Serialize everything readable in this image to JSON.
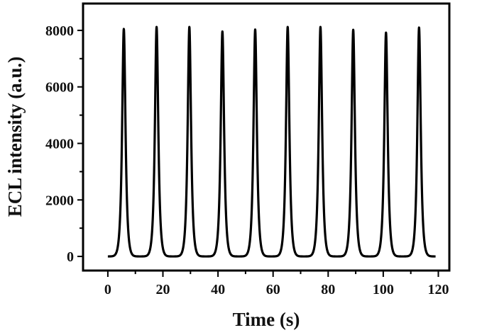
{
  "chart_data": {
    "type": "line",
    "xlabel": "Time (s)",
    "ylabel": "ECL intensity (a.u.)",
    "xlim": [
      -9,
      124
    ],
    "ylim": [
      -500,
      8950
    ],
    "xticks": [
      0,
      20,
      40,
      60,
      80,
      100,
      120
    ],
    "yticks": [
      0,
      2000,
      4000,
      6000,
      8000
    ],
    "grid": false,
    "legend": "none",
    "line_color": "#000000",
    "baseline": 0,
    "x_range": [
      0,
      119
    ],
    "peak_width_s": 1.0,
    "series": [
      {
        "peaks": [
          {
            "x": 5.8,
            "y": 8050
          },
          {
            "x": 17.7,
            "y": 8120
          },
          {
            "x": 29.6,
            "y": 8120
          },
          {
            "x": 41.6,
            "y": 7960
          },
          {
            "x": 53.5,
            "y": 8030
          },
          {
            "x": 65.3,
            "y": 8120
          },
          {
            "x": 77.2,
            "y": 8120
          },
          {
            "x": 89.1,
            "y": 8020
          },
          {
            "x": 101.0,
            "y": 7920
          },
          {
            "x": 113.0,
            "y": 8100
          }
        ]
      }
    ]
  }
}
